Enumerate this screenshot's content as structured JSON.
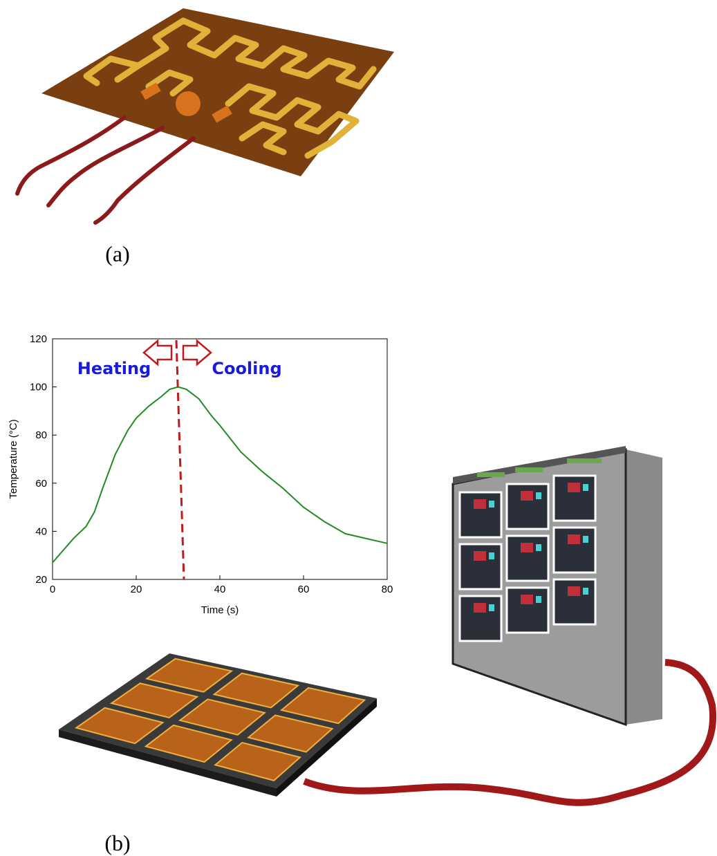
{
  "panels": {
    "a": "(a)",
    "b": "(b)"
  },
  "chart_data": {
    "type": "line",
    "x_label": "Time (s)",
    "y_label": "Temperature (°C)",
    "annotations": [
      "Heating",
      "Cooling"
    ],
    "x": [
      0,
      5,
      8,
      10,
      12,
      15,
      18,
      20,
      23,
      26,
      28,
      30,
      32,
      35,
      38,
      40,
      45,
      50,
      55,
      60,
      65,
      70,
      75,
      80
    ],
    "values": [
      27,
      37,
      42,
      48,
      58,
      72,
      82,
      87,
      92,
      96,
      99,
      100,
      99,
      95,
      88,
      84,
      73,
      65,
      58,
      50,
      44,
      39,
      37,
      35
    ],
    "color": "#228b22",
    "xlim": [
      0,
      80
    ],
    "xticks": [
      0,
      20,
      40,
      60,
      80
    ],
    "ylim": [
      20,
      120
    ],
    "yticks": [
      20,
      40,
      60,
      80,
      100,
      120
    ],
    "grid": false
  }
}
